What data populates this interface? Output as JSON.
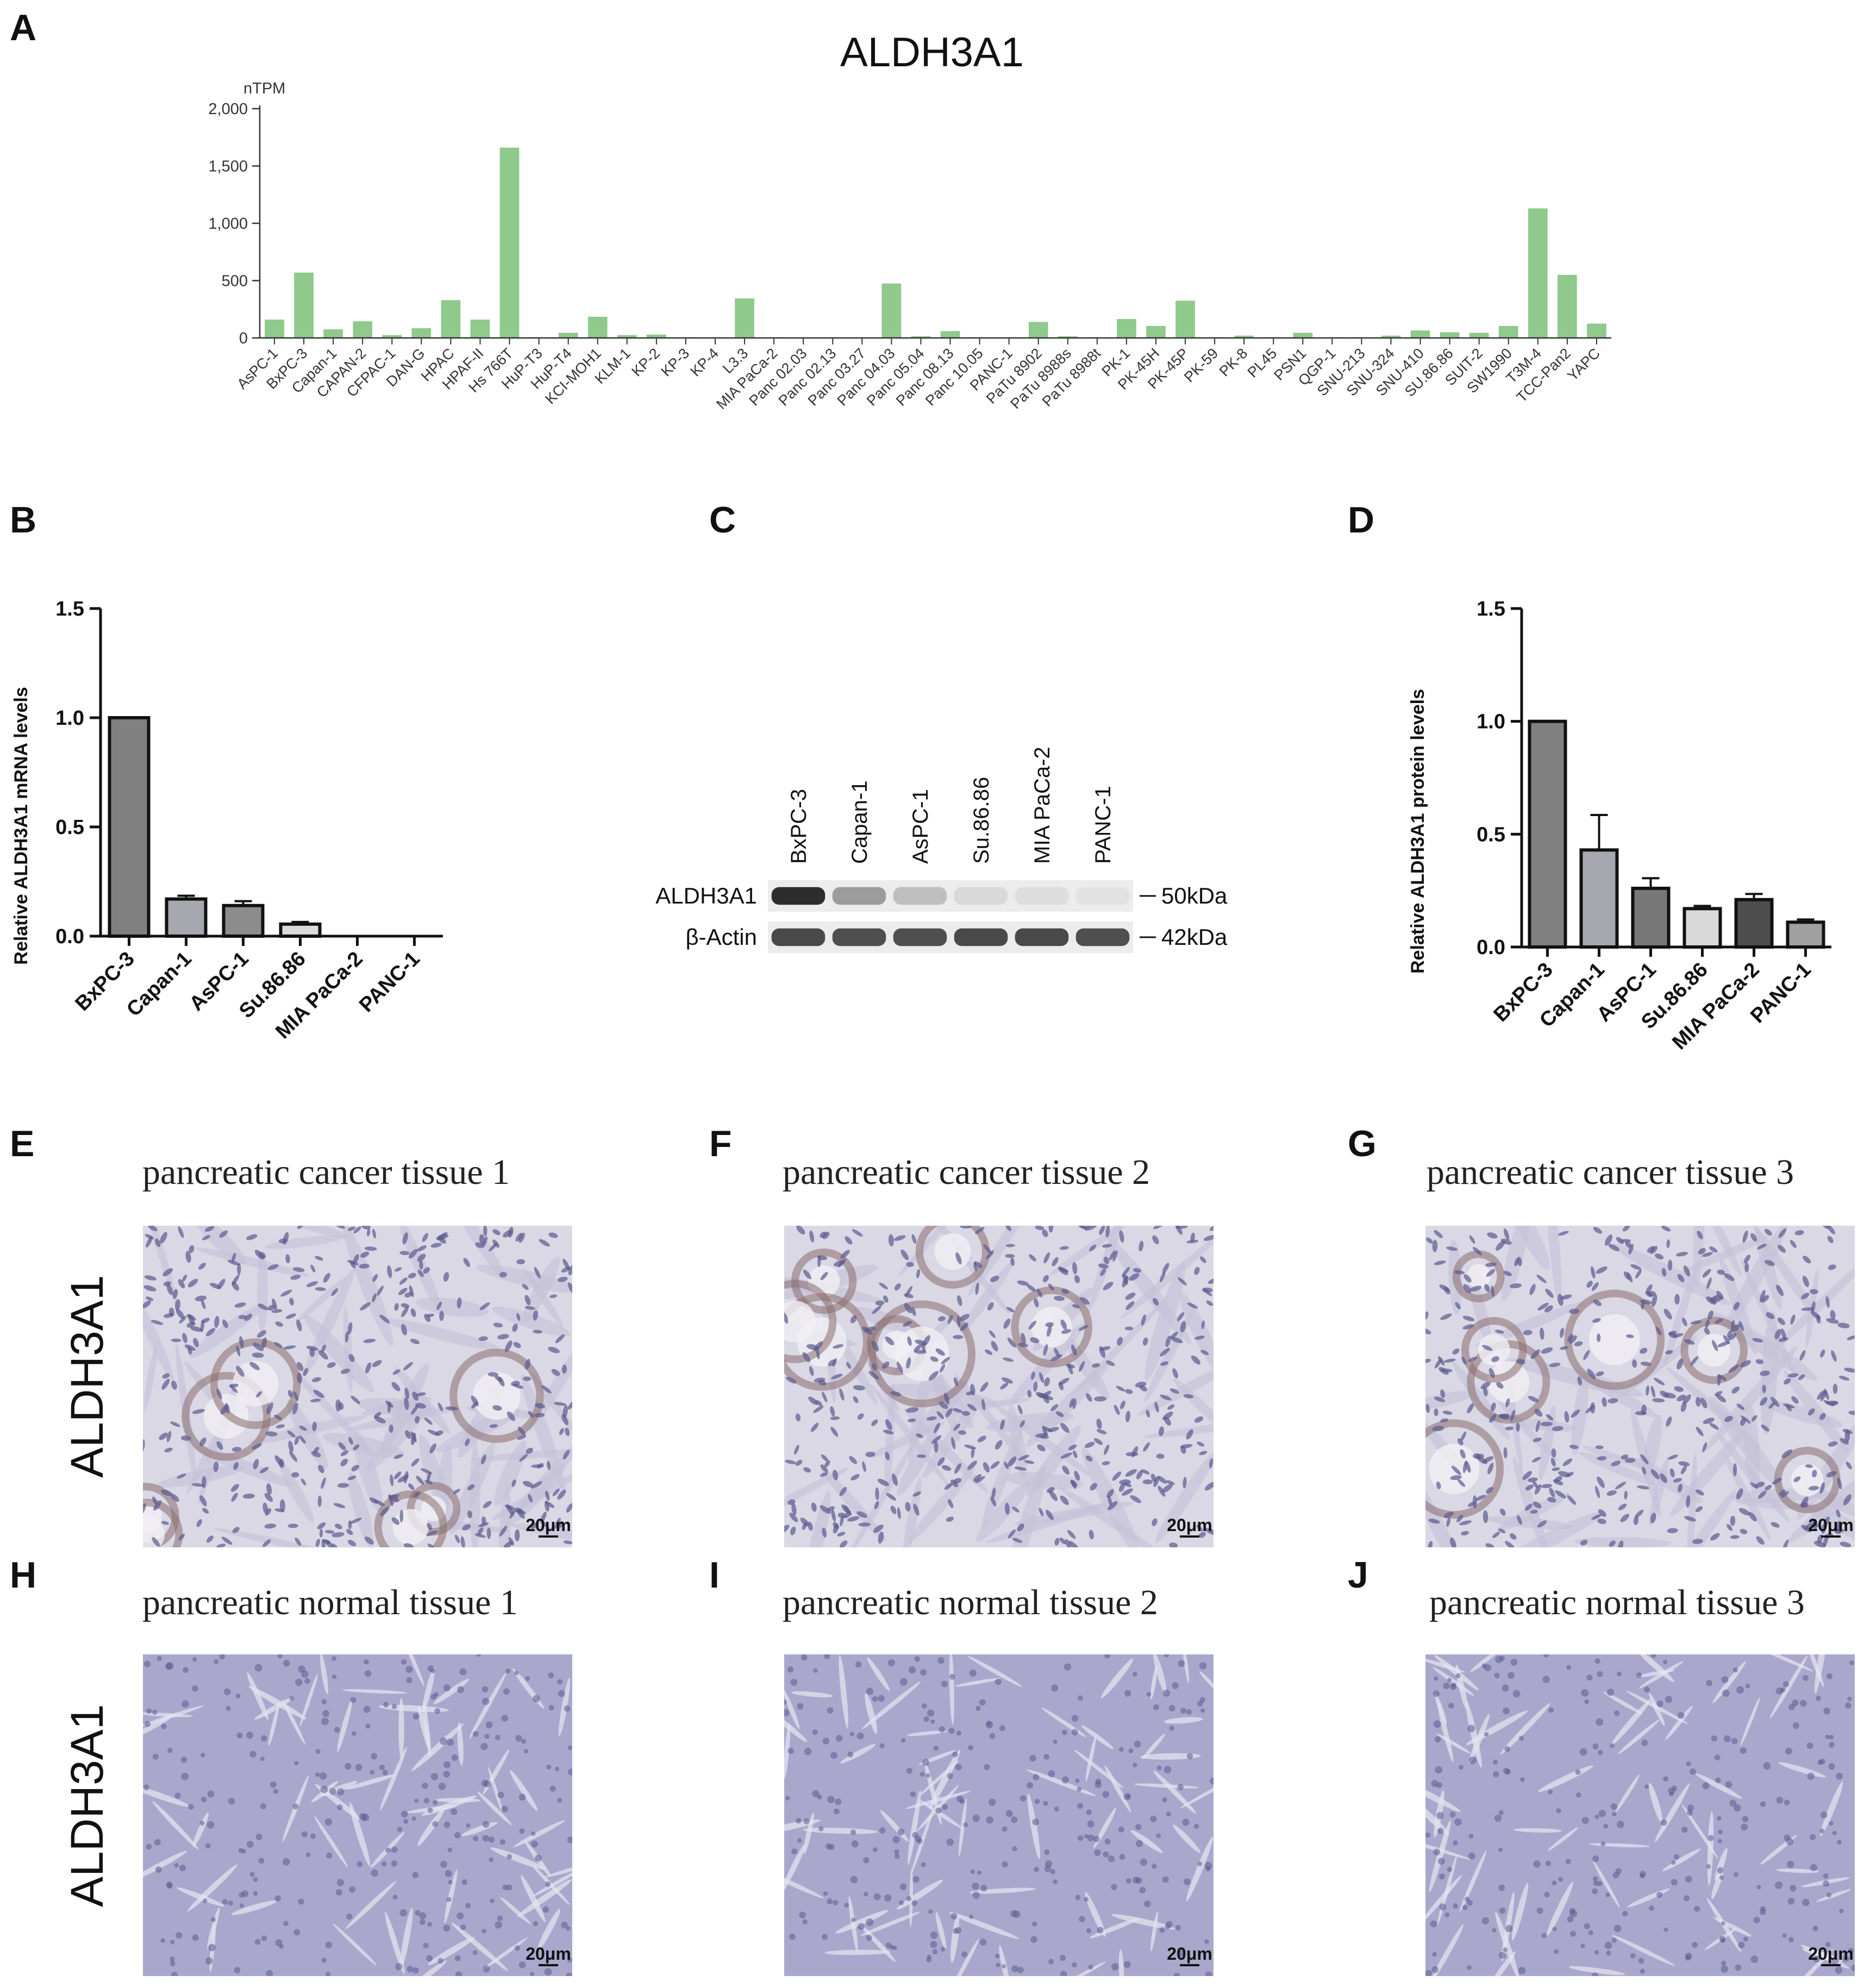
{
  "panels": {
    "A": "A",
    "B": "B",
    "C": "C",
    "D": "D",
    "E": "E",
    "F": "F",
    "G": "G",
    "H": "H",
    "I": "I",
    "J": "J"
  },
  "chart_data": [
    {
      "id": "A",
      "type": "bar",
      "title": "ALDH3A1",
      "ylabel": "nTPM",
      "ylim": [
        0,
        2000
      ],
      "yticks": [
        "0",
        "500",
        "1,000",
        "1,500",
        "2,000"
      ],
      "ytick_values": [
        0,
        500,
        1000,
        1500,
        2000
      ],
      "color": "#8fc98c",
      "categories": [
        "AsPC-1",
        "BxPC-3",
        "Capan-1",
        "CAPAN-2",
        "CFPAC-1",
        "DAN-G",
        "HPAC",
        "HPAF-II",
        "Hs 766T",
        "HuP-T3",
        "HuP-T4",
        "KCI-MOH1",
        "KLM-1",
        "KP-2",
        "KP-3",
        "KP-4",
        "L3.3",
        "MIA PaCa-2",
        "Panc 02.03",
        "Panc 02.13",
        "Panc 03.27",
        "Panc 04.03",
        "Panc 05.04",
        "Panc 08.13",
        "Panc 10.05",
        "PANC-1",
        "PaTu 8902",
        "PaTu 8988s",
        "PaTu 8988t",
        "PK-1",
        "PK-45H",
        "PK-45P",
        "PK-59",
        "PK-8",
        "PL45",
        "PSN1",
        "QGP-1",
        "SNU-213",
        "SNU-324",
        "SNU-410",
        "SU.86.86",
        "SUIT-2",
        "SW1990",
        "T3M-4",
        "TCC-Pan2",
        "YAPC"
      ],
      "values": [
        160,
        570,
        75,
        145,
        25,
        85,
        330,
        160,
        1660,
        5,
        45,
        185,
        25,
        30,
        5,
        3,
        345,
        5,
        3,
        3,
        3,
        475,
        15,
        60,
        5,
        3,
        140,
        15,
        5,
        165,
        105,
        325,
        5,
        20,
        5,
        45,
        5,
        5,
        20,
        65,
        50,
        45,
        105,
        1130,
        550,
        125
      ]
    },
    {
      "id": "B",
      "type": "bar",
      "ylabel": "Relative ALDH3A1 mRNA levels",
      "ylim": [
        0,
        1.5
      ],
      "yticks": [
        "0.0",
        "0.5",
        "1.0",
        "1.5"
      ],
      "ytick_values": [
        0,
        0.5,
        1.0,
        1.5
      ],
      "categories": [
        "BxPC-3",
        "Capan-1",
        "AsPC-1",
        "Su.86.86",
        "MIA PaCa-2",
        "PANC-1"
      ],
      "values": [
        1.0,
        0.17,
        0.14,
        0.055,
        0.0,
        0.0
      ],
      "errors": [
        0.0,
        0.015,
        0.02,
        0.01,
        0.0,
        0.0
      ],
      "colors": [
        "#808080",
        "#a7a7af",
        "#8c8c8c",
        "#d9d9d9",
        "#4d4d4d",
        "#bfbfbf"
      ]
    },
    {
      "id": "D",
      "type": "bar",
      "ylabel": "Relative ALDH3A1 protein levels",
      "ylim": [
        0,
        1.5
      ],
      "yticks": [
        "0.0",
        "0.5",
        "1.0",
        "1.5"
      ],
      "ytick_values": [
        0,
        0.5,
        1.0,
        1.5
      ],
      "categories": [
        "BxPC-3",
        "Capan-1",
        "AsPC-1",
        "Su.86.86",
        "MIA PaCa-2",
        "PANC-1"
      ],
      "values": [
        1.0,
        0.43,
        0.26,
        0.17,
        0.21,
        0.11
      ],
      "errors": [
        0.0,
        0.155,
        0.045,
        0.012,
        0.025,
        0.012
      ],
      "colors": [
        "#808080",
        "#a7a7af",
        "#777777",
        "#d9d9d9",
        "#4d4d4d",
        "#a0a0a0"
      ]
    }
  ],
  "blot": {
    "lanes": [
      "BxPC-3",
      "Capan-1",
      "AsPC-1",
      "Su.86.86",
      "MIA PaCa-2",
      "PANC-1"
    ],
    "rows": [
      {
        "label": "ALDH3A1",
        "marker": "50kDa",
        "intensity": [
          1.0,
          0.55,
          0.35,
          0.15,
          0.12,
          0.06
        ]
      },
      {
        "label": "β-Actin",
        "marker": "42kDa",
        "intensity": [
          0.9,
          0.88,
          0.88,
          0.9,
          0.9,
          0.88
        ]
      }
    ]
  },
  "ihc": {
    "row_label": "ALDH3A1",
    "scale_bar": "20μm",
    "tiles": [
      {
        "letter": "E",
        "title": "pancreatic cancer tissue 1",
        "kind": "cancer",
        "seed": 11
      },
      {
        "letter": "F",
        "title": "pancreatic cancer tissue 2",
        "kind": "cancer",
        "seed": 23
      },
      {
        "letter": "G",
        "title": "pancreatic cancer tissue 3",
        "kind": "cancer",
        "seed": 37
      },
      {
        "letter": "H",
        "title": "pancreatic normal tissue 1",
        "kind": "normal",
        "seed": 41
      },
      {
        "letter": "I",
        "title": "pancreatic normal tissue 2",
        "kind": "normal",
        "seed": 53
      },
      {
        "letter": "J",
        "title": "pancreatic normal tissue 3",
        "kind": "normal",
        "seed": 67
      }
    ]
  }
}
